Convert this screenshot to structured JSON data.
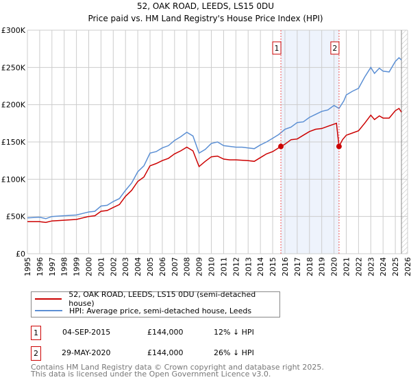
{
  "chart_data": {
    "type": "line",
    "title": "52, OAK ROAD, LEEDS, LS15 0DU",
    "subtitle": "Price paid vs. HM Land Registry's House Price Index (HPI)",
    "xlim": [
      1995,
      2026
    ],
    "ylim": [
      0,
      300000
    ],
    "grid": true,
    "y_ticks": [
      {
        "v": 0,
        "label": "£0"
      },
      {
        "v": 50000,
        "label": "£50K"
      },
      {
        "v": 100000,
        "label": "£100K"
      },
      {
        "v": 150000,
        "label": "£150K"
      },
      {
        "v": 200000,
        "label": "£200K"
      },
      {
        "v": 250000,
        "label": "£250K"
      },
      {
        "v": 300000,
        "label": "£300K"
      }
    ],
    "x_ticks": [
      "1995",
      "1996",
      "1997",
      "1998",
      "1999",
      "2000",
      "2001",
      "2002",
      "2003",
      "2004",
      "2005",
      "2006",
      "2007",
      "2008",
      "2009",
      "2010",
      "2011",
      "2012",
      "2013",
      "2014",
      "2015",
      "2016",
      "2017",
      "2018",
      "2019",
      "2020",
      "2021",
      "2022",
      "2023",
      "2024",
      "2025",
      "2026"
    ],
    "shaded_range": [
      2015.67,
      2020.41
    ],
    "hatched_from": 2025.5,
    "series": [
      {
        "name": "52, OAK ROAD, LEEDS, LS15 0DU (semi-detached house)",
        "color": "#cc0000",
        "x": [
          1995,
          1996,
          1996.5,
          1997,
          1998,
          1999,
          1999.5,
          2000,
          2000.5,
          2001,
          2001.5,
          2002,
          2002.5,
          2003,
          2003.5,
          2004,
          2004.5,
          2005,
          2005.5,
          2006,
          2006.5,
          2007,
          2007.5,
          2008,
          2008.5,
          2009,
          2009.5,
          2010,
          2010.5,
          2011,
          2011.5,
          2012,
          2013,
          2013.5,
          2014,
          2014.5,
          2015,
          2015.67,
          2016,
          2016.5,
          2017,
          2017.5,
          2018,
          2018.5,
          2019,
          2019.5,
          2020.2,
          2020.41,
          2020.7,
          2021,
          2021.5,
          2022,
          2022.5,
          2023,
          2023.3,
          2023.7,
          2024,
          2024.5,
          2025,
          2025.3,
          2025.5
        ],
        "y": [
          43000,
          43000,
          42000,
          44000,
          45000,
          46000,
          48000,
          50000,
          51000,
          57000,
          58000,
          62000,
          66000,
          77000,
          85000,
          97000,
          103000,
          118000,
          121000,
          125000,
          128000,
          134000,
          138000,
          143000,
          138000,
          117000,
          124000,
          130000,
          131000,
          127000,
          126000,
          126000,
          125000,
          124000,
          129000,
          134000,
          137000,
          144000,
          147000,
          153000,
          154000,
          159000,
          164000,
          167000,
          168000,
          171000,
          175000,
          144000,
          153000,
          159000,
          162000,
          165000,
          175000,
          186000,
          180000,
          185000,
          182000,
          182000,
          192000,
          195000,
          190000
        ]
      },
      {
        "name": "HPI: Average price, semi-detached house, Leeds",
        "color": "#5b8fd4",
        "x": [
          1995,
          1996,
          1996.5,
          1997,
          1998,
          1999,
          1999.5,
          2000,
          2000.5,
          2001,
          2001.5,
          2002,
          2002.5,
          2003,
          2003.5,
          2004,
          2004.5,
          2005,
          2005.5,
          2006,
          2006.5,
          2007,
          2007.5,
          2008,
          2008.5,
          2009,
          2009.5,
          2010,
          2010.5,
          2011,
          2011.5,
          2012,
          2012.5,
          2013,
          2013.5,
          2014,
          2014.5,
          2015,
          2015.5,
          2016,
          2016.5,
          2017,
          2017.5,
          2018,
          2018.5,
          2019,
          2019.5,
          2020,
          2020.41,
          2020.8,
          2021,
          2021.5,
          2022,
          2022.5,
          2023,
          2023.3,
          2023.7,
          2024,
          2024.5,
          2025,
          2025.3,
          2025.5
        ],
        "y": [
          48000,
          49000,
          47000,
          50000,
          51000,
          52000,
          54000,
          56000,
          57000,
          64000,
          65000,
          70000,
          74000,
          85000,
          95000,
          110000,
          118000,
          135000,
          137000,
          142000,
          145000,
          152000,
          157000,
          163000,
          158000,
          135000,
          140000,
          148000,
          150000,
          145000,
          144000,
          143000,
          143000,
          142000,
          141000,
          146000,
          150000,
          155000,
          160000,
          167000,
          170000,
          176000,
          177000,
          183000,
          187000,
          191000,
          193000,
          199000,
          195000,
          205000,
          213000,
          218000,
          222000,
          237000,
          250000,
          242000,
          249000,
          245000,
          244000,
          258000,
          263000,
          260000
        ]
      }
    ],
    "sales": [
      {
        "id": "1",
        "date": "04-SEP-2015",
        "price": "£144,000",
        "hpi": "12% ↓ HPI",
        "x": 2015.67,
        "y": 144000
      },
      {
        "id": "2",
        "date": "29-MAY-2020",
        "price": "£144,000",
        "hpi": "26% ↓ HPI",
        "x": 2020.41,
        "y": 144000
      }
    ]
  },
  "footer": {
    "line1": "Contains HM Land Registry data © Crown copyright and database right 2025.",
    "line2": "This data is licensed under the Open Government Licence v3.0."
  }
}
